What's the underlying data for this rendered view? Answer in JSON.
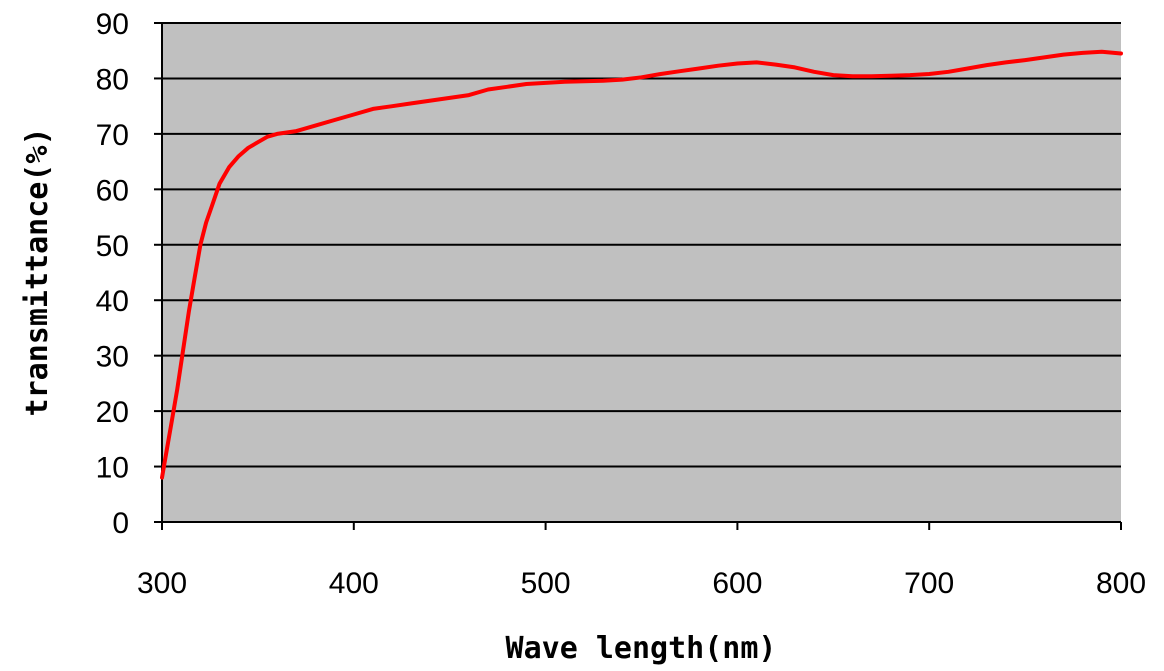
{
  "chart_data": {
    "type": "line",
    "title": "",
    "xlabel": "Wave length(nm)",
    "ylabel": "transmittance(%)",
    "xlim": [
      300,
      800
    ],
    "ylim": [
      0,
      90
    ],
    "x_ticks": [
      "300",
      "400",
      "500",
      "600",
      "700",
      "800"
    ],
    "y_ticks": [
      "0",
      "10",
      "20",
      "30",
      "40",
      "50",
      "60",
      "70",
      "80",
      "90"
    ],
    "grid": "horizontal",
    "legend": "none",
    "colors": {
      "plot_bg": "#c0c0c0",
      "line": "#ff0000",
      "grid": "#000000"
    },
    "series": [
      {
        "x": [
          300,
          302,
          305,
          308,
          311,
          314,
          317,
          320,
          323,
          326,
          330,
          335,
          340,
          345,
          350,
          355,
          360,
          370,
          380,
          390,
          400,
          410,
          420,
          430,
          440,
          450,
          460,
          470,
          480,
          490,
          500,
          510,
          520,
          530,
          540,
          550,
          560,
          570,
          580,
          590,
          600,
          610,
          620,
          630,
          640,
          650,
          660,
          670,
          680,
          690,
          700,
          710,
          720,
          730,
          740,
          750,
          760,
          770,
          780,
          790,
          800
        ],
        "y": [
          8,
          12,
          18,
          24,
          31,
          38,
          44,
          50,
          54,
          57,
          61,
          64,
          66,
          67.5,
          68.5,
          69.5,
          70,
          70.5,
          71.5,
          72.5,
          73.5,
          74.5,
          75,
          75.5,
          76,
          76.5,
          77,
          78,
          78.5,
          79,
          79.2,
          79.4,
          79.5,
          79.6,
          79.8,
          80.2,
          80.8,
          81.3,
          81.8,
          82.3,
          82.7,
          82.9,
          82.5,
          82,
          81.2,
          80.6,
          80.4,
          80.4,
          80.5,
          80.6,
          80.8,
          81.2,
          81.8,
          82.4,
          82.9,
          83.3,
          83.8,
          84.3,
          84.6,
          84.8,
          84.5
        ]
      }
    ]
  }
}
